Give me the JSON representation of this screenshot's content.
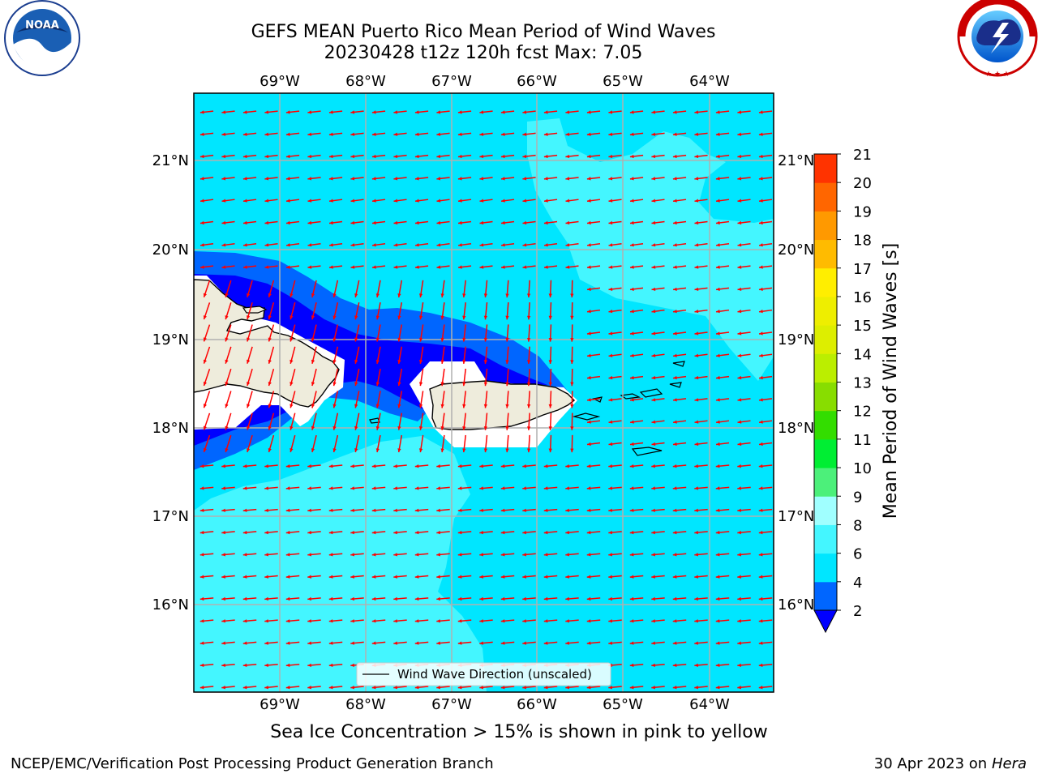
{
  "header": {
    "title_line1": "GEFS MEAN Puerto Rico Mean Period of Wind Waves",
    "title_line2": "20230428 t12z 120h fcst   Max: 7.05"
  },
  "map": {
    "lon_labels": [
      "69°W",
      "68°W",
      "67°W",
      "66°W",
      "65°W",
      "64°W"
    ],
    "lat_labels": [
      "21°N",
      "20°N",
      "19°N",
      "18°N",
      "17°N",
      "16°N"
    ],
    "legend_label": "Wind Wave Direction (unscaled)",
    "land_color": "#eeecdc",
    "vector_color": "#ff0000",
    "wind_direction": "from east (westward arrows)"
  },
  "colorbar": {
    "title": "Mean Period of Wind Waves [s]",
    "levels": [
      "2",
      "4",
      "6",
      "8",
      "9",
      "10",
      "11",
      "12",
      "13",
      "14",
      "15",
      "16",
      "17",
      "18",
      "19",
      "20",
      "21"
    ],
    "colors": [
      "#0066ff",
      "#00e6ff",
      "#44f6ff",
      "#a0ffff",
      "#4cf07a",
      "#00ee33",
      "#33dd00",
      "#88dd00",
      "#bbee00",
      "#ddee00",
      "#eeee00",
      "#ffee00",
      "#ffbb00",
      "#ff9900",
      "#ff6600",
      "#ff3300",
      "#ff0000"
    ],
    "under_color": "#0000ff"
  },
  "caption": "Sea Ice Concentration > 15% is shown in pink to yellow",
  "footer": {
    "left": "NCEP/EMC/Verification Post Processing Product Generation Branch",
    "right_date": "30 Apr 2023 on",
    "right_host": "Hera"
  },
  "logos": {
    "noaa_text": "NOAA",
    "nws_text": "NATIONAL WEATHER SERVICE"
  }
}
